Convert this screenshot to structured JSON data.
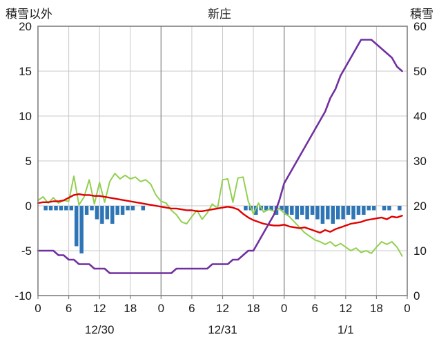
{
  "chart_data": {
    "type": "line",
    "title": "新庄",
    "left_axis": {
      "label": "積雪以外",
      "min": -10,
      "max": 20,
      "ticks": [
        20,
        15,
        10,
        5,
        0,
        -5,
        -10
      ]
    },
    "right_axis": {
      "label": "積雪",
      "min": 0,
      "max": 60,
      "ticks": [
        60,
        50,
        40,
        30,
        20,
        10,
        0
      ]
    },
    "x_axis": {
      "min": 0,
      "max": 72,
      "tick_interval": 6,
      "tick_labels": [
        "0",
        "6",
        "12",
        "18",
        "0",
        "6",
        "12",
        "18",
        "0",
        "6",
        "12",
        "18",
        "0"
      ],
      "day_boundaries": [
        24,
        48
      ],
      "day_labels": [
        {
          "label": "12/30",
          "x": 12
        },
        {
          "label": "12/31",
          "x": 36
        },
        {
          "label": "1/1",
          "x": 60
        }
      ]
    },
    "grid": {
      "color": "#c9c9c9",
      "day_boundary_color": "#8f8f8f",
      "border_color": "#7f7f7f"
    },
    "series": [
      {
        "name": "precipitation-bars",
        "type": "bar",
        "axis": "left",
        "color": "#2e75b6",
        "x_start": 0,
        "x_step": 1,
        "values": [
          0,
          -0.5,
          -0.5,
          -0.5,
          -0.5,
          -0.5,
          -0.5,
          -4.5,
          -5.3,
          -1.0,
          -0.5,
          -1.5,
          -2.0,
          -1.5,
          -2.0,
          -1.0,
          -1.0,
          -0.5,
          -0.5,
          0,
          -0.5,
          0,
          0,
          0,
          0,
          0,
          0,
          0,
          0,
          0,
          0,
          0,
          0,
          0,
          0,
          0,
          0,
          0,
          0,
          0,
          -0.5,
          -0.5,
          -1.0,
          -0.5,
          -0.5,
          -0.5,
          -1.0,
          -0.5,
          -1.0,
          -1.0,
          -1.5,
          -1.0,
          -1.5,
          -1.0,
          -1.5,
          -2.0,
          -1.5,
          -2.0,
          -1.5,
          -1.5,
          -1.0,
          -1.5,
          -1.0,
          -1.0,
          -0.5,
          -0.5,
          0,
          -0.5,
          -0.5,
          0,
          -0.5,
          0
        ]
      },
      {
        "name": "green-line",
        "type": "line",
        "axis": "left",
        "color": "#92d050",
        "line_width": 2,
        "x_start": 0,
        "x_step": 1,
        "values": [
          0.6,
          1.0,
          0.3,
          0.9,
          0.3,
          0.6,
          0.5,
          3.3,
          0.1,
          1.0,
          2.9,
          0.2,
          2.6,
          0.4,
          2.7,
          3.6,
          3.0,
          3.4,
          3.0,
          3.2,
          2.7,
          2.9,
          2.4,
          1.2,
          0.5,
          0.3,
          -0.5,
          -1.0,
          -1.8,
          -2.0,
          -1.2,
          -0.5,
          -1.5,
          -0.8,
          0.2,
          -0.3,
          2.9,
          3.0,
          0.4,
          3.1,
          3.2,
          0.5,
          -0.9,
          0.3,
          -0.7,
          -0.4,
          -0.6,
          -0.3,
          -0.8,
          -1.2,
          -1.8,
          -2.4,
          -3.0,
          -3.4,
          -3.8,
          -4.0,
          -4.3,
          -4.0,
          -4.5,
          -4.2,
          -4.6,
          -5.0,
          -4.7,
          -5.2,
          -5.0,
          -5.3,
          -4.6,
          -4.0,
          -4.3,
          -4.0,
          -4.6,
          -5.6
        ]
      },
      {
        "name": "temperature-line",
        "type": "line",
        "axis": "left",
        "color": "#e00000",
        "line_width": 2.4,
        "x_start": 0,
        "x_step": 1,
        "values": [
          0.3,
          0.4,
          0.4,
          0.5,
          0.5,
          0.6,
          0.9,
          1.2,
          1.3,
          1.2,
          1.2,
          1.1,
          1.1,
          1.0,
          0.9,
          0.8,
          0.7,
          0.6,
          0.5,
          0.4,
          0.3,
          0.2,
          0.1,
          0.0,
          -0.1,
          -0.2,
          -0.3,
          -0.3,
          -0.4,
          -0.5,
          -0.5,
          -0.6,
          -0.6,
          -0.5,
          -0.4,
          -0.3,
          -0.2,
          -0.1,
          -0.2,
          -0.4,
          -0.9,
          -1.3,
          -1.6,
          -1.8,
          -2.0,
          -2.1,
          -2.2,
          -2.2,
          -2.1,
          -2.3,
          -2.4,
          -2.5,
          -2.4,
          -2.6,
          -2.8,
          -3.0,
          -2.7,
          -2.9,
          -2.6,
          -2.4,
          -2.2,
          -2.0,
          -1.9,
          -1.8,
          -1.6,
          -1.5,
          -1.4,
          -1.3,
          -1.5,
          -1.2,
          -1.3,
          -1.1
        ]
      },
      {
        "name": "snow-depth-line",
        "type": "line",
        "axis": "right",
        "color": "#7030a0",
        "line_width": 2.6,
        "x_start": 0,
        "x_step": 1,
        "values": [
          10,
          10,
          10,
          10,
          9,
          9,
          8,
          8,
          7,
          7,
          7,
          6,
          6,
          6,
          5,
          5,
          5,
          5,
          5,
          5,
          5,
          5,
          5,
          5,
          5,
          5,
          5,
          6,
          6,
          6,
          6,
          6,
          6,
          6,
          7,
          7,
          7,
          7,
          8,
          8,
          9,
          10,
          10,
          12,
          14,
          16,
          18,
          21,
          25,
          27,
          29,
          31,
          33,
          35,
          37,
          39,
          41,
          44,
          46,
          49,
          51,
          53,
          55,
          57,
          57,
          57,
          56,
          55,
          54,
          53,
          51,
          50
        ]
      }
    ]
  }
}
